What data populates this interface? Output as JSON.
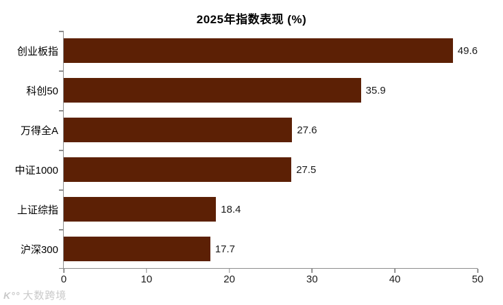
{
  "title": "2025年指数表现 (%)",
  "chart_data": {
    "type": "bar",
    "orientation": "horizontal",
    "title": "2025年指数表现 (%)",
    "categories": [
      "创业板指",
      "科创50",
      "万得全A",
      "中证1000",
      "上证综指",
      "沪深300"
    ],
    "values": [
      49.6,
      35.9,
      27.6,
      27.5,
      18.4,
      17.7
    ],
    "xlabel": "",
    "ylabel": "",
    "xlim": [
      0,
      50
    ],
    "x_ticks": [
      0,
      10,
      20,
      30,
      40,
      50
    ],
    "grid": false,
    "legend": "none",
    "value_labels_shown": true,
    "bar_color": "#5c2005",
    "axis_color": "#8c8c8c",
    "text_color": "#1a1a1a"
  },
  "watermark": {
    "logo": "K°°",
    "text": "大数跨境"
  }
}
